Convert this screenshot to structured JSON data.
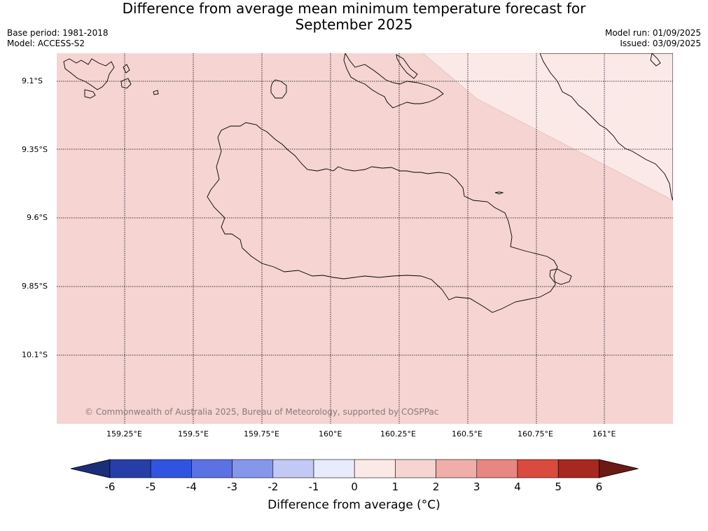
{
  "header": {
    "title_line1": "Difference from average mean minimum temperature forecast for",
    "title_line2": "September 2025",
    "base_period": "Base period: 1981-2018",
    "model": "Model: ACCESS-S2",
    "model_run": "Model run: 01/09/2025",
    "issued": "Issued: 03/09/2025"
  },
  "map": {
    "lat_labels": [
      "9.1°S",
      "9.35°S",
      "9.6°S",
      "9.85°S",
      "10.1°S"
    ],
    "lon_labels": [
      "159.25°E",
      "159.5°E",
      "159.75°E",
      "160°E",
      "160.25°E",
      "160.5°E",
      "160.75°E",
      "161°E"
    ],
    "copyright": "© Commonwealth of Australia 2025, Bureau of Meteorology, supported by COSPPac",
    "fill_colors": {
      "main": "#f5d4d1",
      "upper_right": "#fbe9e8"
    }
  },
  "colorbar": {
    "ticks": [
      "-6",
      "-5",
      "-4",
      "-3",
      "-2",
      "-1",
      "0",
      "1",
      "2",
      "3",
      "4",
      "5",
      "6"
    ],
    "colors": [
      "#263fa8",
      "#3054e0",
      "#5b72e4",
      "#8597ea",
      "#c2c9f4",
      "#e8ebfb",
      "#fbe9e8",
      "#f5d4d1",
      "#efaeaa",
      "#e7877f",
      "#db4a3e",
      "#a8271f"
    ],
    "under_color": "#1a2e7a",
    "over_color": "#6b1a14",
    "label": "Difference from average (°C)"
  }
}
